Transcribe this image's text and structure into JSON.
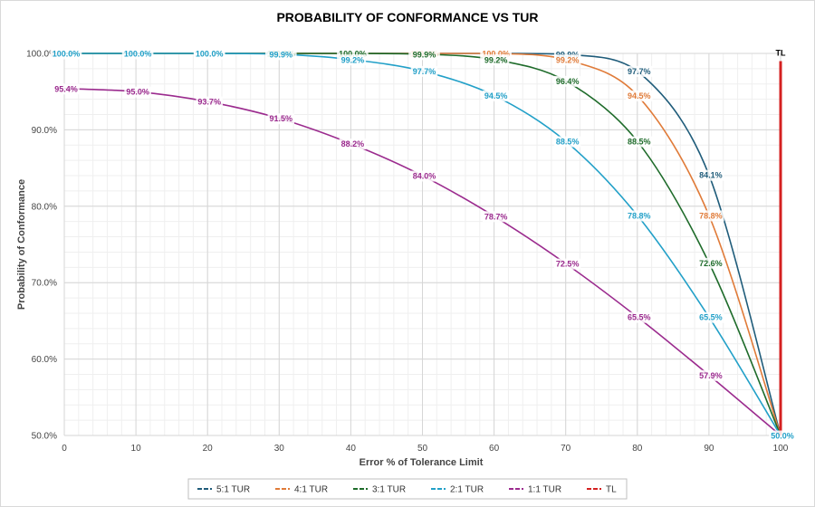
{
  "chart_data": {
    "type": "line",
    "title": "PROBABILITY OF CONFORMANCE VS TUR",
    "xlabel": "Error % of Tolerance Limit",
    "ylabel": "Probability of Conformance",
    "x": [
      0,
      10,
      20,
      30,
      40,
      50,
      60,
      70,
      80,
      90,
      100
    ],
    "xlim": [
      0,
      100
    ],
    "ylim": [
      50,
      100
    ],
    "x_ticks": [
      "0",
      "10",
      "20",
      "30",
      "40",
      "50",
      "60",
      "70",
      "80",
      "90",
      "100"
    ],
    "y_ticks": [
      "50.0%",
      "60.0%",
      "70.0%",
      "80.0%",
      "90.0%",
      "100.0%"
    ],
    "grid": true,
    "legend_position": "bottom",
    "series": [
      {
        "name": "5:1 TUR",
        "color": "#1f5c7a",
        "values": [
          100.0,
          100.0,
          100.0,
          100.0,
          100.0,
          100.0,
          100.0,
          99.9,
          97.7,
          84.1,
          50.0
        ],
        "labels": [
          "",
          "",
          "",
          "",
          "",
          "",
          "",
          "99.9%",
          "97.7%",
          "84.1%",
          ""
        ]
      },
      {
        "name": "4:1 TUR",
        "color": "#e07b39",
        "values": [
          100.0,
          100.0,
          100.0,
          100.0,
          100.0,
          100.0,
          100.0,
          99.2,
          94.5,
          78.8,
          50.0
        ],
        "labels": [
          "",
          "",
          "",
          "",
          "",
          "100.0%",
          "100.0%",
          "99.2%",
          "94.5%",
          "78.8%",
          ""
        ]
      },
      {
        "name": "3:1 TUR",
        "color": "#1e6b2a",
        "values": [
          100.0,
          100.0,
          100.0,
          100.0,
          100.0,
          99.9,
          99.2,
          96.4,
          88.5,
          72.6,
          50.0
        ],
        "labels": [
          "",
          "",
          "100.0%",
          "100.0%",
          "100.0%",
          "99.9%",
          "99.2%",
          "96.4%",
          "88.5%",
          "72.6%",
          ""
        ]
      },
      {
        "name": "2:1 TUR",
        "color": "#22a0c8",
        "values": [
          100.0,
          100.0,
          100.0,
          99.9,
          99.2,
          97.7,
          94.5,
          88.5,
          78.8,
          65.5,
          50.0
        ],
        "labels": [
          "100.0%",
          "100.0%",
          "100.0%",
          "99.9%",
          "99.2%",
          "97.7%",
          "94.5%",
          "88.5%",
          "78.8%",
          "65.5%",
          "50.0%"
        ]
      },
      {
        "name": "1:1 TUR",
        "color": "#9b2b8e",
        "values": [
          95.4,
          95.0,
          93.7,
          91.5,
          88.2,
          84.0,
          78.7,
          72.5,
          65.5,
          57.9,
          50.0
        ],
        "labels": [
          "95.4%",
          "95.0%",
          "93.7%",
          "91.5%",
          "88.2%",
          "84.0%",
          "78.7%",
          "72.5%",
          "65.5%",
          "57.9%",
          ""
        ]
      },
      {
        "name": "TL",
        "color": "#d42020",
        "x": [
          100,
          100
        ],
        "values": [
          50.0,
          99.0
        ],
        "labels": [
          "",
          "TL"
        ]
      }
    ]
  }
}
